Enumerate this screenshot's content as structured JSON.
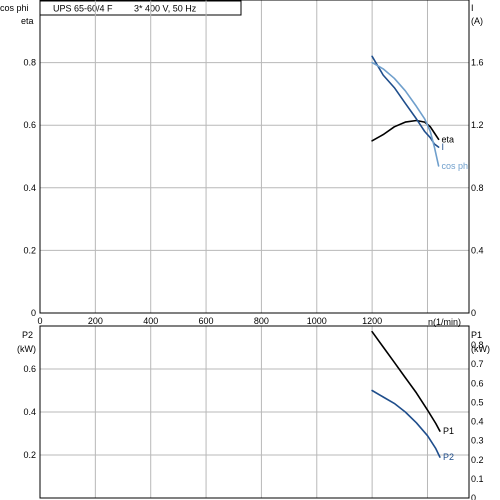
{
  "title_box": {
    "model": "UPS 65-60/4 F",
    "supply": "3* 400 V, 50 Hz"
  },
  "colors": {
    "grid": "#b8b8b8",
    "frame": "#000000",
    "black_series": "#000000",
    "dark_blue": "#1f4e8c",
    "light_blue": "#6f9fcc"
  },
  "chart_data": [
    {
      "type": "line",
      "name": "upper",
      "x_axis": {
        "ticks": [
          0,
          200,
          400,
          600,
          800,
          1000,
          1200
        ],
        "unit_label": "n(1/min)",
        "xlim": [
          0,
          1550
        ]
      },
      "y_left": {
        "labels": [
          "cos phi",
          "eta"
        ],
        "ticks": [
          0,
          0.2,
          0.4,
          0.6,
          0.8
        ],
        "ylim": [
          0,
          1.0
        ]
      },
      "y_right": {
        "labels": [
          "I",
          "(A)"
        ],
        "ticks": [
          0,
          0.4,
          0.8,
          1.2,
          1.6
        ],
        "ylim": [
          0,
          2.0
        ]
      },
      "grid": true,
      "series": [
        {
          "name": "eta",
          "axis": "left",
          "color": "#000000",
          "x": [
            1200,
            1240,
            1280,
            1320,
            1360,
            1390,
            1410,
            1425,
            1440
          ],
          "y": [
            0.55,
            0.57,
            0.595,
            0.61,
            0.615,
            0.61,
            0.595,
            0.575,
            0.555
          ]
        },
        {
          "name": "I",
          "axis": "right",
          "color": "#1f4e8c",
          "x": [
            1200,
            1240,
            1280,
            1320,
            1360,
            1390,
            1410,
            1425,
            1440
          ],
          "y": [
            1.64,
            1.52,
            1.44,
            1.34,
            1.24,
            1.16,
            1.12,
            1.08,
            1.06
          ]
        },
        {
          "name": "cos phi",
          "axis": "left",
          "color": "#6f9fcc",
          "x": [
            1200,
            1240,
            1280,
            1320,
            1360,
            1390,
            1410,
            1425,
            1440
          ],
          "y": [
            0.8,
            0.78,
            0.75,
            0.71,
            0.66,
            0.62,
            0.58,
            0.53,
            0.47
          ]
        }
      ]
    },
    {
      "type": "line",
      "name": "lower",
      "y_left": {
        "labels": [
          "P2",
          "(kW)"
        ],
        "ticks": [
          0.2,
          0.4,
          0.6
        ],
        "ylim": [
          0,
          0.8
        ]
      },
      "y_right": {
        "labels": [
          "P1",
          "(kW)"
        ],
        "ticks": [
          0,
          0.1,
          0.2,
          0.3,
          0.4,
          0.5,
          0.6,
          0.7,
          0.8
        ],
        "ylim": [
          0,
          0.9
        ]
      },
      "grid": true,
      "series": [
        {
          "name": "P1",
          "axis": "right",
          "color": "#000000",
          "x": [
            1200,
            1240,
            1280,
            1320,
            1360,
            1400,
            1430,
            1445
          ],
          "y": [
            0.87,
            0.79,
            0.71,
            0.63,
            0.55,
            0.46,
            0.39,
            0.35
          ]
        },
        {
          "name": "P2",
          "axis": "left",
          "color": "#1f4e8c",
          "x": [
            1200,
            1240,
            1280,
            1320,
            1360,
            1400,
            1430,
            1445
          ],
          "y": [
            0.5,
            0.47,
            0.44,
            0.4,
            0.35,
            0.29,
            0.23,
            0.19
          ]
        }
      ]
    }
  ]
}
